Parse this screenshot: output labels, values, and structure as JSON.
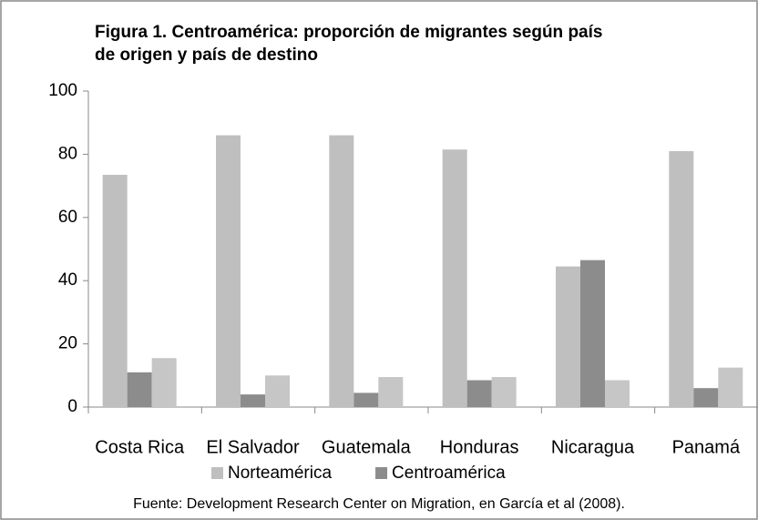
{
  "chart_data": {
    "type": "bar",
    "title": [
      "Figura 1. Centroamérica: proporción de migrantes según país",
      "de origen y país de destino"
    ],
    "categories": [
      "Costa Rica",
      "El Salvador",
      "Guatemala",
      "Honduras",
      "Nicaragua",
      "Panamá"
    ],
    "series": [
      {
        "name": "Norteamérica",
        "color": "#bfbfbf",
        "values": [
          73.5,
          86,
          86,
          81.5,
          44.5,
          81
        ]
      },
      {
        "name": "Centroamérica",
        "color": "#8c8c8c",
        "values": [
          11,
          4,
          4.5,
          8.5,
          46.5,
          6
        ]
      },
      {
        "color": "#c6c6c6",
        "values": [
          15.5,
          10,
          9.5,
          9.5,
          8.5,
          12.5
        ]
      }
    ],
    "ylim": [
      0,
      100
    ],
    "yticks": [
      0,
      20,
      40,
      60,
      80,
      100
    ],
    "grid": false,
    "source": "Fuente:  Development Research Center on Migration, en García et al  (2008)."
  }
}
